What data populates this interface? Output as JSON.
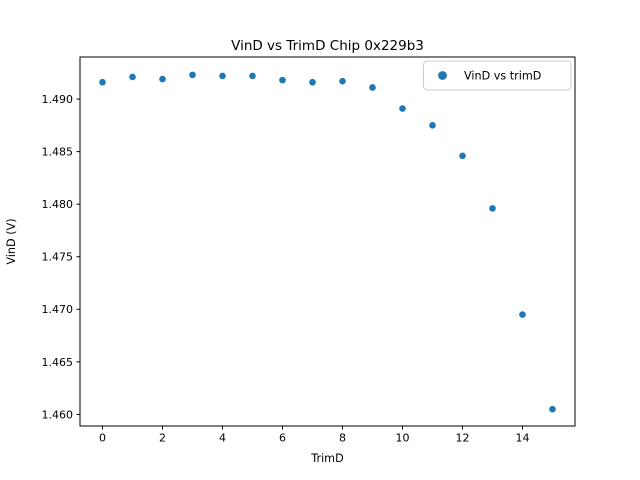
{
  "window": {
    "title": "VinD vs TrimD Chip 0x229b3"
  },
  "chart_data": {
    "type": "scatter",
    "title": "VinD vs TrimD Chip 0x229b3",
    "xlabel": "TrimD",
    "ylabel": "VinD (V)",
    "marker_color": "#1f77b4",
    "marker_shape": "circle",
    "grid": false,
    "legend_position": "upper-right",
    "legend": [
      {
        "label": "VinD vs trimD",
        "color": "#1f77b4"
      }
    ],
    "x": [
      0,
      1,
      2,
      3,
      4,
      5,
      6,
      7,
      8,
      9,
      10,
      11,
      12,
      13,
      14,
      15
    ],
    "y": [
      1.4916,
      1.4921,
      1.4919,
      1.4923,
      1.4922,
      1.4922,
      1.4918,
      1.4916,
      1.4917,
      1.4911,
      1.4891,
      1.4875,
      1.4846,
      1.4796,
      1.4695,
      1.4605
    ],
    "xlim": [
      -0.75,
      15.75
    ],
    "ylim": [
      1.4589,
      1.494
    ],
    "xticks": {
      "values": [
        0,
        2,
        4,
        6,
        8,
        10,
        12,
        14
      ],
      "labels": [
        "0",
        "2",
        "4",
        "6",
        "8",
        "10",
        "12",
        "14"
      ]
    },
    "yticks": {
      "values": [
        1.46,
        1.465,
        1.47,
        1.475,
        1.48,
        1.485,
        1.49
      ],
      "labels": [
        "1.460",
        "1.465",
        "1.470",
        "1.475",
        "1.480",
        "1.485",
        "1.490"
      ]
    }
  }
}
